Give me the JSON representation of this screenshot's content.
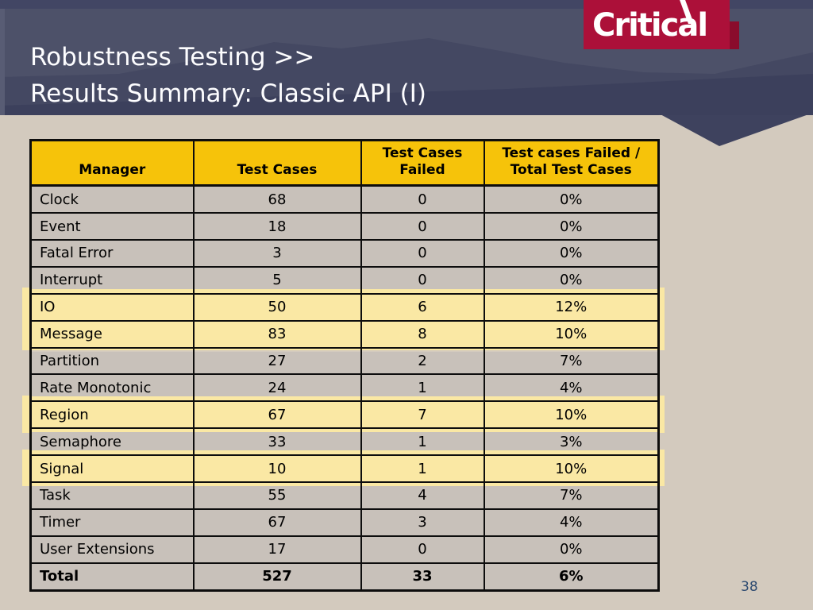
{
  "slide": {
    "title_line1": "Robustness Testing >>",
    "title_line2": "Results Summary: Classic API (I)",
    "page_number": "38"
  },
  "logo": {
    "text": "Critical"
  },
  "colors": {
    "background": "#d3cabe",
    "header_band": "#4d5169",
    "header_band_dark": "#3c405c",
    "logo_red": "#ac1039",
    "logo_tab_red": "#8a0c2c",
    "table_header_gold": "#f6c30a",
    "row_gray": "#c8c1ba",
    "highlight_yellow": "#fae8a4",
    "border_black": "#0d0d0d",
    "page_number_blue": "#2d4a70"
  },
  "table": {
    "columns": [
      {
        "line1": "Manager",
        "line2": ""
      },
      {
        "line1": "Test Cases",
        "line2": ""
      },
      {
        "line1": "Test Cases",
        "line2": "Failed"
      },
      {
        "line1": "Test cases Failed /",
        "line2": "Total Test Cases"
      }
    ],
    "rows": [
      {
        "label": "Clock",
        "cases": "68",
        "failed": "0",
        "pct": "0%",
        "highlight": false,
        "bold": false
      },
      {
        "label": "Event",
        "cases": "18",
        "failed": "0",
        "pct": "0%",
        "highlight": false,
        "bold": false
      },
      {
        "label": "Fatal Error",
        "cases": "3",
        "failed": "0",
        "pct": "0%",
        "highlight": false,
        "bold": false
      },
      {
        "label": "Interrupt",
        "cases": "5",
        "failed": "0",
        "pct": "0%",
        "highlight": false,
        "bold": false
      },
      {
        "label": "IO",
        "cases": "50",
        "failed": "6",
        "pct": "12%",
        "highlight": true,
        "bold": false
      },
      {
        "label": "Message",
        "cases": "83",
        "failed": "8",
        "pct": "10%",
        "highlight": true,
        "bold": false
      },
      {
        "label": "Partition",
        "cases": "27",
        "failed": "2",
        "pct": "7%",
        "highlight": false,
        "bold": false
      },
      {
        "label": "Rate Monotonic",
        "cases": "24",
        "failed": "1",
        "pct": "4%",
        "highlight": false,
        "bold": false
      },
      {
        "label": "Region",
        "cases": "67",
        "failed": "7",
        "pct": "10%",
        "highlight": true,
        "bold": false
      },
      {
        "label": "Semaphore",
        "cases": "33",
        "failed": "1",
        "pct": "3%",
        "highlight": false,
        "bold": false
      },
      {
        "label": "Signal",
        "cases": "10",
        "failed": "1",
        "pct": "10%",
        "highlight": true,
        "bold": false
      },
      {
        "label": "Task",
        "cases": "55",
        "failed": "4",
        "pct": "7%",
        "highlight": false,
        "bold": false
      },
      {
        "label": "Timer",
        "cases": "67",
        "failed": "3",
        "pct": "4%",
        "highlight": false,
        "bold": false
      },
      {
        "label": "User Extensions",
        "cases": "17",
        "failed": "0",
        "pct": "0%",
        "highlight": false,
        "bold": false
      },
      {
        "label": "Total",
        "cases": "527",
        "failed": "33",
        "pct": "6%",
        "highlight": false,
        "bold": true
      }
    ]
  }
}
